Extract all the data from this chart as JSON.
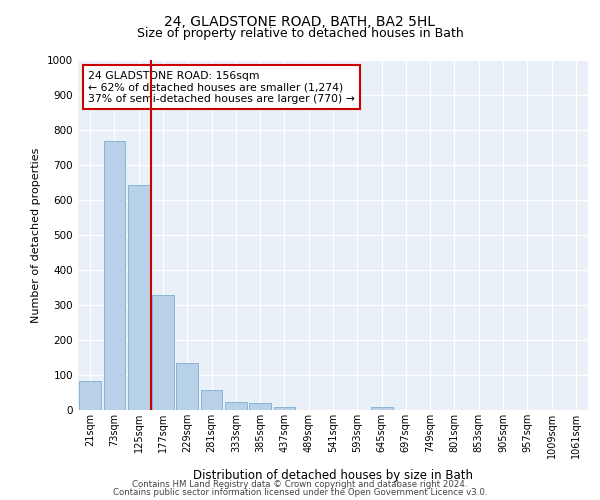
{
  "title1": "24, GLADSTONE ROAD, BATH, BA2 5HL",
  "title2": "Size of property relative to detached houses in Bath",
  "xlabel": "Distribution of detached houses by size in Bath",
  "ylabel": "Number of detached properties",
  "categories": [
    "21sqm",
    "73sqm",
    "125sqm",
    "177sqm",
    "229sqm",
    "281sqm",
    "333sqm",
    "385sqm",
    "437sqm",
    "489sqm",
    "541sqm",
    "593sqm",
    "645sqm",
    "697sqm",
    "749sqm",
    "801sqm",
    "853sqm",
    "905sqm",
    "957sqm",
    "1009sqm",
    "1061sqm"
  ],
  "values": [
    83,
    770,
    642,
    330,
    133,
    58,
    23,
    20,
    10,
    0,
    0,
    0,
    10,
    0,
    0,
    0,
    0,
    0,
    0,
    0,
    0
  ],
  "bar_color": "#b8d0e8",
  "bar_edge_color": "#7aaed4",
  "vline_color": "#cc0000",
  "annotation_text": "24 GLADSTONE ROAD: 156sqm\n← 62% of detached houses are smaller (1,274)\n37% of semi-detached houses are larger (770) →",
  "annotation_box_color": "#ffffff",
  "annotation_box_edge_color": "#cc0000",
  "ylim": [
    0,
    1000
  ],
  "yticks": [
    0,
    100,
    200,
    300,
    400,
    500,
    600,
    700,
    800,
    900,
    1000
  ],
  "bg_color": "#eaf0f8",
  "footer1": "Contains HM Land Registry data © Crown copyright and database right 2024.",
  "footer2": "Contains public sector information licensed under the Open Government Licence v3.0.",
  "title1_fontsize": 10,
  "title2_fontsize": 9,
  "bar_width": 0.9
}
